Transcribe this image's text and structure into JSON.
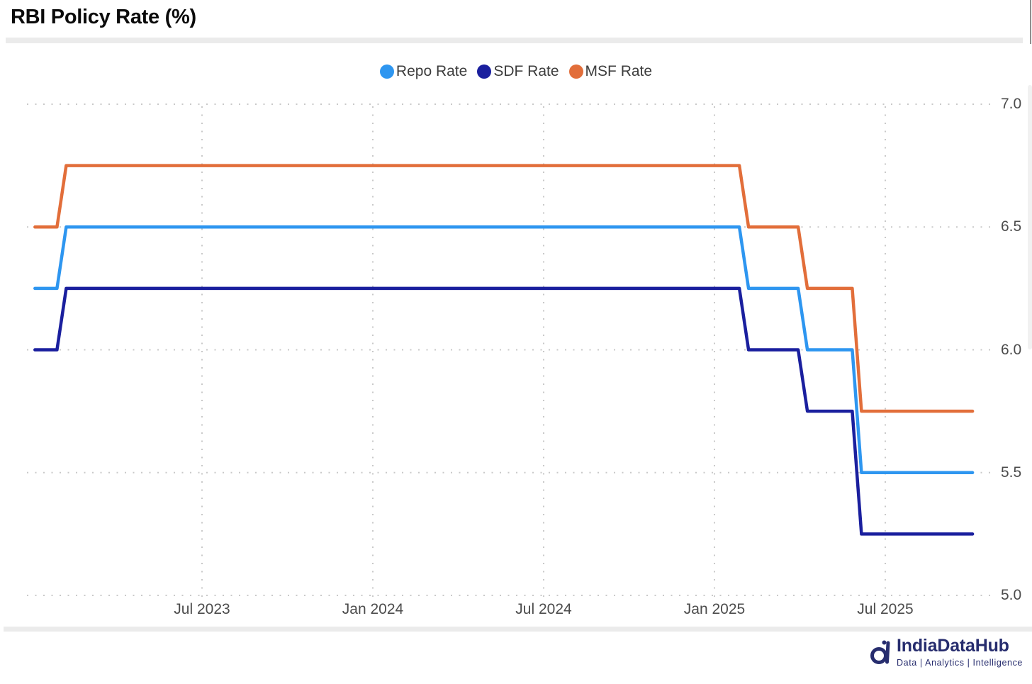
{
  "header": {
    "title": "RBI Policy Rate (%)"
  },
  "chart_data": {
    "type": "line",
    "step": true,
    "title": "RBI Policy Rate (%)",
    "ylabel": "",
    "xlabel": "",
    "ylim": [
      5.0,
      7.0
    ],
    "y_ticks": [
      7.0,
      6.5,
      6.0,
      5.5,
      5.0
    ],
    "x_ticks": [
      "Jul 2023",
      "Jan 2024",
      "Jul 2024",
      "Jan 2025",
      "Jul 2025"
    ],
    "x_range": [
      "2023-01-05",
      "2025-10-03"
    ],
    "grid": "dotted",
    "legend_position": "top-center",
    "series": [
      {
        "name": "Repo Rate",
        "color": "#2e96f0",
        "points": [
          [
            "2023-01-05",
            6.25
          ],
          [
            "2023-02-08",
            6.5
          ],
          [
            "2025-02-07",
            6.25
          ],
          [
            "2025-04-09",
            6.0
          ],
          [
            "2025-06-06",
            5.5
          ],
          [
            "2025-10-03",
            5.5
          ]
        ]
      },
      {
        "name": "SDF Rate",
        "color": "#1a1f9e",
        "points": [
          [
            "2023-01-05",
            6.0
          ],
          [
            "2023-02-08",
            6.25
          ],
          [
            "2025-02-07",
            6.0
          ],
          [
            "2025-04-09",
            5.75
          ],
          [
            "2025-06-06",
            5.25
          ],
          [
            "2025-10-03",
            5.25
          ]
        ]
      },
      {
        "name": "MSF Rate",
        "color": "#e26e3a",
        "points": [
          [
            "2023-01-05",
            6.5
          ],
          [
            "2023-02-08",
            6.75
          ],
          [
            "2025-02-07",
            6.5
          ],
          [
            "2025-04-09",
            6.25
          ],
          [
            "2025-06-06",
            5.75
          ],
          [
            "2025-10-03",
            5.75
          ]
        ]
      }
    ]
  },
  "footer": {
    "brand": "IndiaDataHub",
    "tagline": "Data | Analytics | Intelligence"
  },
  "colors": {
    "grid": "#c9c9c9",
    "axis_text": "#4c4c4c",
    "legend_text": "#3d3d3d",
    "divider": "#ebebeb",
    "brand_navy": "#272d6e",
    "repo": "#2e96f0",
    "sdf": "#1a1f9e",
    "msf": "#e26e3a"
  }
}
